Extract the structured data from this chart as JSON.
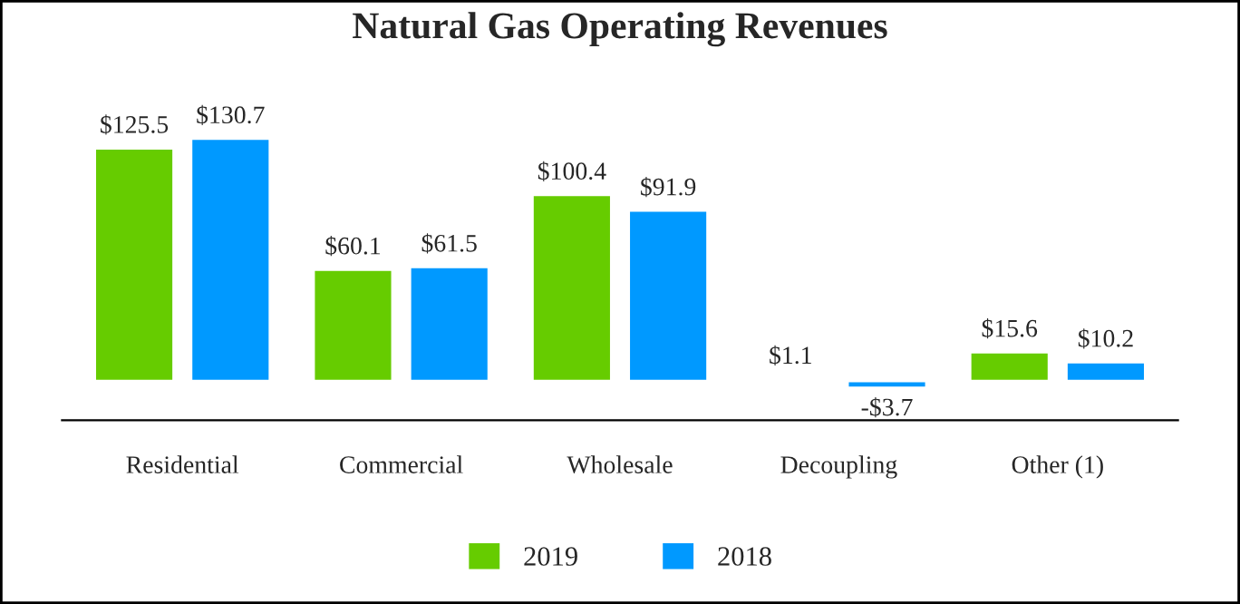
{
  "chart_data": {
    "type": "bar",
    "title": "Natural Gas Operating Revenues",
    "categories": [
      "Residential",
      "Commercial",
      "Wholesale",
      "Decoupling",
      "Other (1)"
    ],
    "series": [
      {
        "name": "2019",
        "color": "#66cc00",
        "values": [
          125.5,
          60.1,
          100.4,
          1.1,
          15.6
        ],
        "value_labels": [
          "$125.5",
          "$60.1",
          "$100.4",
          "$1.1",
          "$15.6"
        ]
      },
      {
        "name": "2018",
        "color": "#0099ff",
        "values": [
          130.7,
          61.5,
          91.9,
          -3.7,
          10.2
        ],
        "value_labels": [
          "$130.7",
          "$61.5",
          "$91.9",
          "-$3.7",
          "$10.2"
        ]
      }
    ],
    "legend": "bottom",
    "grid": false
  }
}
